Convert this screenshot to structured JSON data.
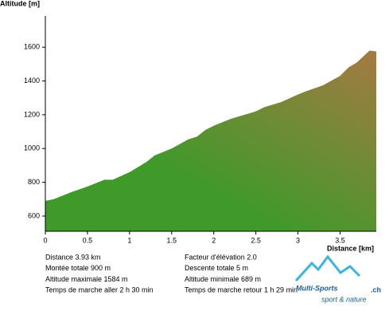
{
  "chart_data": {
    "type": "area",
    "y_label": "Altitude [m]",
    "x_label": "Distance [km]",
    "x": [
      0,
      0.1,
      0.3,
      0.5,
      0.7,
      0.8,
      1.0,
      1.2,
      1.3,
      1.5,
      1.7,
      1.8,
      1.9,
      2.0,
      2.2,
      2.5,
      2.6,
      2.8,
      3.0,
      3.1,
      3.3,
      3.5,
      3.6,
      3.7,
      3.85,
      3.93
    ],
    "values": [
      690,
      700,
      740,
      775,
      815,
      815,
      860,
      920,
      960,
      1000,
      1055,
      1070,
      1110,
      1135,
      1175,
      1220,
      1245,
      1275,
      1320,
      1340,
      1375,
      1430,
      1480,
      1510,
      1580,
      1575
    ],
    "colors": [
      "#3f9a2a",
      "#a57a43"
    ],
    "xlim": [
      0,
      3.93
    ],
    "ylim": [
      510,
      1785
    ],
    "xticks": [
      0,
      0.5,
      1,
      1.5,
      2,
      2.5,
      3,
      3.5
    ],
    "yticks": [
      600,
      800,
      1000,
      1200,
      1400,
      1600
    ]
  },
  "stats": [
    [
      "Distance  3.93 km",
      "Facteur d'élévation 2.0"
    ],
    [
      "Montée totale  900 m",
      "Descente totale  5 m"
    ],
    [
      "Altitude maximale  1584 m",
      "Altitude minimale  689 m"
    ],
    [
      "Temps de marche aller  2 h 30 min",
      "Temps de marche retour  1 h 29 min"
    ]
  ],
  "logo": {
    "brand": "Multi-Sports",
    "domain": ".ch",
    "tagline": "sport & nature"
  }
}
